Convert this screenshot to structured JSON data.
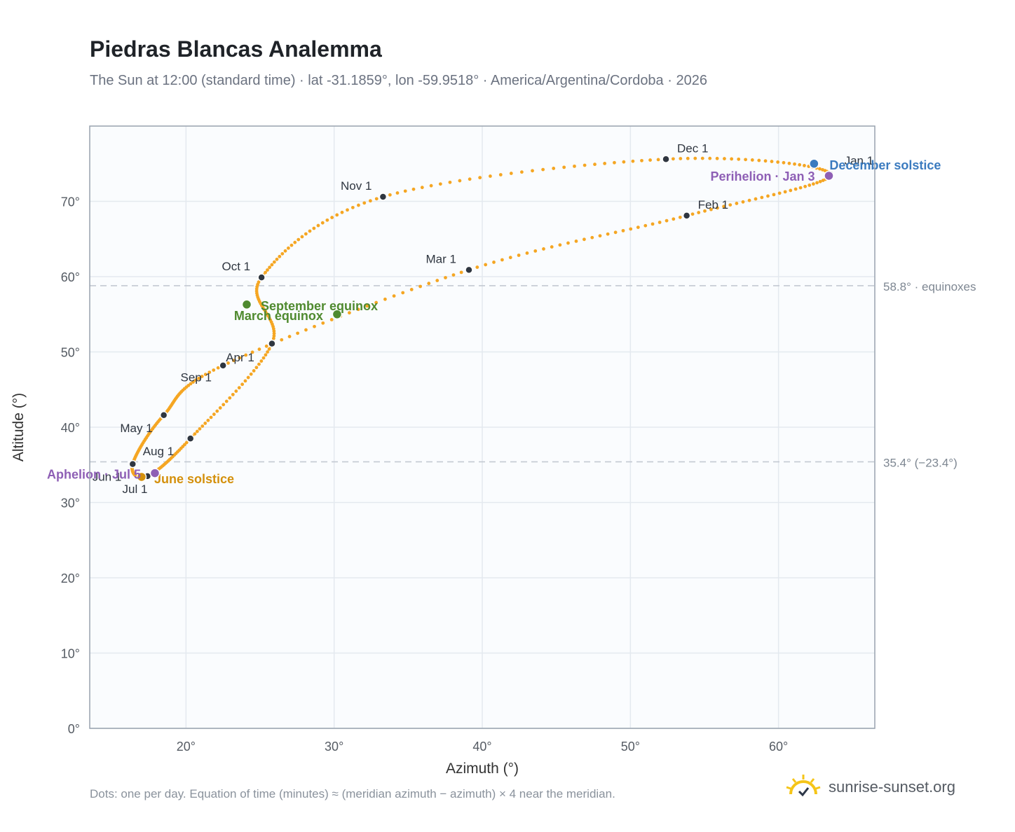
{
  "header": {
    "title": "Piedras Blancas Analemma",
    "subtitle": "The Sun at 12:00 (standard time) · lat -31.1859°, lon -59.9518° · America/Argentina/Cordoba · 2026"
  },
  "footer": {
    "note": "Dots: one per day. Equation of time (minutes) ≈ (meridian azimuth − azimuth) × 4 near the meridian.",
    "brand": "sunrise-sunset.org"
  },
  "colors": {
    "curve": "#f5a623",
    "month_marker": "#2f3640",
    "equinox": "#4f8a2f",
    "june_solstice": "#d4900c",
    "december_solstice": "#3b7bbf",
    "apsis": "#8e5fb5",
    "plot_bg": "#fafcfe",
    "grid": "#e4e9ef",
    "frame": "#98a2ae"
  },
  "chart_data": {
    "type": "scatter",
    "xlabel": "Azimuth (°)",
    "ylabel": "Altitude (°)",
    "xlim": [
      13.5,
      66.5
    ],
    "ylim": [
      0,
      80
    ],
    "x_ticks": [
      20,
      30,
      40,
      50,
      60
    ],
    "y_ticks": [
      0,
      10,
      20,
      30,
      40,
      50,
      60,
      70
    ],
    "tick_suffix": "°",
    "grid": true,
    "month_markers": [
      {
        "label": "Jan 1",
        "az": 63.5,
        "alt": 73.6
      },
      {
        "label": "Feb 1",
        "az": 53.8,
        "alt": 68.1
      },
      {
        "label": "Mar 1",
        "az": 39.1,
        "alt": 60.9
      },
      {
        "label": "Apr 1",
        "az": 22.5,
        "alt": 48.2
      },
      {
        "label": "May 1",
        "az": 18.5,
        "alt": 41.6
      },
      {
        "label": "Jun 1",
        "az": 16.4,
        "alt": 35.1
      },
      {
        "label": "Jul 1",
        "az": 17.4,
        "alt": 33.5
      },
      {
        "label": "Aug 1",
        "az": 20.3,
        "alt": 38.5
      },
      {
        "label": "Sep 1",
        "az": 25.8,
        "alt": 51.1
      },
      {
        "label": "Oct 1",
        "az": 25.1,
        "alt": 59.9
      },
      {
        "label": "Nov 1",
        "az": 33.3,
        "alt": 70.6
      },
      {
        "label": "Dec 1",
        "az": 52.4,
        "alt": 75.6
      }
    ],
    "events": [
      {
        "label": "March equinox",
        "az": 30.2,
        "alt": 55.0,
        "kind": "equinox"
      },
      {
        "label": "September equinox",
        "az": 24.1,
        "alt": 56.3,
        "kind": "equinox"
      },
      {
        "label": "June solstice",
        "az": 17.0,
        "alt": 33.4,
        "kind": "june_solstice"
      },
      {
        "label": "December solstice",
        "az": 62.4,
        "alt": 75.0,
        "kind": "december_solstice"
      },
      {
        "label": "Aphelion · Jul 5",
        "az": 17.9,
        "alt": 33.9,
        "kind": "apsis"
      },
      {
        "label": "Perihelion · Jan 3",
        "az": 63.4,
        "alt": 73.4,
        "kind": "apsis"
      }
    ],
    "reference_lines": [
      {
        "label": "58.8° · equinoxes",
        "alt": 58.8
      },
      {
        "label": "35.4° (−23.4°)",
        "alt": 35.4
      }
    ]
  }
}
